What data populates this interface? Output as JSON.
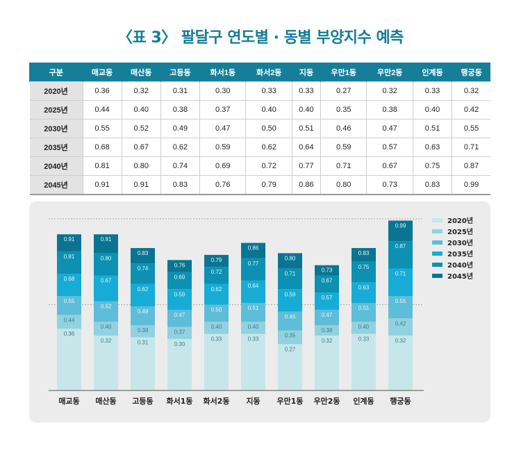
{
  "title": "〈표 3〉 팔달구 연도별 · 동별 부양지수 예측",
  "table": {
    "header": [
      "구분",
      "매교동",
      "매산동",
      "고등동",
      "화서1동",
      "화서2동",
      "지동",
      "우만1동",
      "우만2동",
      "인계동",
      "행궁동"
    ],
    "rows": [
      [
        "2020년",
        "0.36",
        "0.32",
        "0.31",
        "0.30",
        "0.33",
        "0.33",
        "0.27",
        "0.32",
        "0.33",
        "0.32"
      ],
      [
        "2025년",
        "0.44",
        "0.40",
        "0.38",
        "0.37",
        "0.40",
        "0.40",
        "0.35",
        "0.38",
        "0.40",
        "0.42"
      ],
      [
        "2030년",
        "0.55",
        "0.52",
        "0.49",
        "0.47",
        "0.50",
        "0.51",
        "0.46",
        "0.47",
        "0.51",
        "0.55"
      ],
      [
        "2035년",
        "0.68",
        "0.67",
        "0.62",
        "0.59",
        "0.62",
        "0.64",
        "0.59",
        "0.57",
        "0.63",
        "0.71"
      ],
      [
        "2040년",
        "0.81",
        "0.80",
        "0.74",
        "0.69",
        "0.72",
        "0.77",
        "0.71",
        "0.67",
        "0.75",
        "0.87"
      ],
      [
        "2045년",
        "0.91",
        "0.91",
        "0.83",
        "0.76",
        "0.79",
        "0.86",
        "0.80",
        "0.73",
        "0.83",
        "0.99"
      ]
    ]
  },
  "chart_data": {
    "type": "bar",
    "mode": "overlapping cumulative (each year drawn from previous year's value)",
    "categories": [
      "매교동",
      "매산동",
      "고등동",
      "화서1동",
      "화서2동",
      "지동",
      "우만1동",
      "우만2동",
      "인계동",
      "행궁동"
    ],
    "series": [
      {
        "name": "2020년",
        "values": [
          0.36,
          0.32,
          0.31,
          0.3,
          0.33,
          0.33,
          0.27,
          0.32,
          0.33,
          0.32
        ],
        "color": "#c6e6ea"
      },
      {
        "name": "2025년",
        "values": [
          0.44,
          0.4,
          0.38,
          0.37,
          0.4,
          0.4,
          0.35,
          0.38,
          0.4,
          0.42
        ],
        "color": "#92d1df"
      },
      {
        "name": "2030년",
        "values": [
          0.55,
          0.52,
          0.49,
          0.47,
          0.5,
          0.51,
          0.46,
          0.47,
          0.51,
          0.55
        ],
        "color": "#5ebdd9"
      },
      {
        "name": "2035년",
        "values": [
          0.68,
          0.67,
          0.62,
          0.59,
          0.62,
          0.64,
          0.59,
          0.57,
          0.63,
          0.71
        ],
        "color": "#17acd5"
      },
      {
        "name": "2040년",
        "values": [
          0.81,
          0.8,
          0.74,
          0.69,
          0.72,
          0.77,
          0.71,
          0.67,
          0.75,
          0.87
        ],
        "color": "#0c91b2"
      },
      {
        "name": "2045년",
        "values": [
          0.91,
          0.91,
          0.83,
          0.76,
          0.79,
          0.86,
          0.8,
          0.73,
          0.83,
          0.99
        ],
        "color": "#0a7592"
      }
    ],
    "ylim": [
      0,
      1.0
    ],
    "reference_lines": [
      0.5,
      1.0
    ],
    "legend": "right"
  }
}
